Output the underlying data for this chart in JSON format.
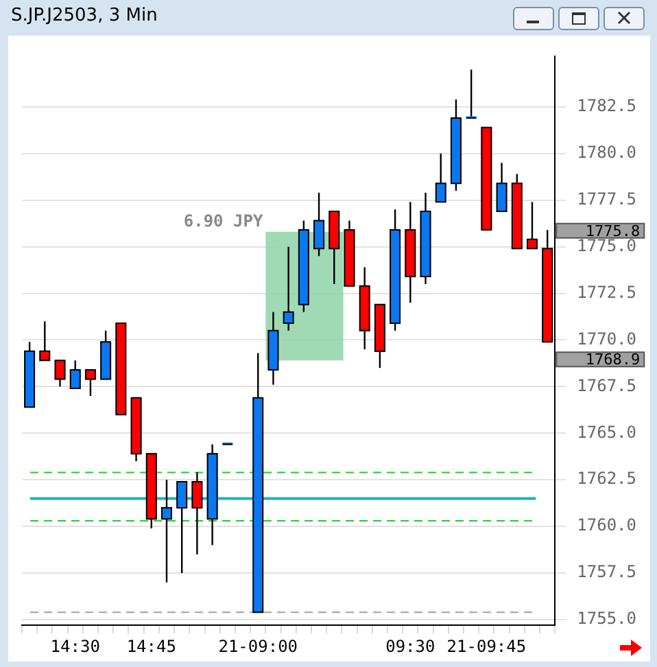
{
  "chart_data": {
    "type": "candlestick",
    "title": "S.JP.J2503, 3 Min",
    "categories": [
      null,
      null,
      null,
      "14:30",
      null,
      null,
      null,
      null,
      "14:45",
      null,
      null,
      null,
      null,
      null,
      null,
      "21-09:00",
      null,
      null,
      null,
      null,
      null,
      null,
      null,
      null,
      null,
      "09:30",
      null,
      null,
      null,
      null,
      "21-09:45",
      null,
      null,
      null,
      null
    ],
    "ohlc": [
      [
        1766.4,
        1769.9,
        1766.4,
        1769.4
      ],
      [
        1769.4,
        1771.0,
        1768.9,
        1768.9
      ],
      [
        1768.9,
        1768.9,
        1767.5,
        1767.9
      ],
      [
        1767.4,
        1768.9,
        1767.4,
        1768.4
      ],
      [
        1768.4,
        1768.4,
        1767.0,
        1767.9
      ],
      [
        1767.9,
        1770.5,
        1767.9,
        1769.9
      ],
      [
        1770.9,
        1770.9,
        1766.0,
        1766.0
      ],
      [
        1766.9,
        1766.9,
        1763.5,
        1763.9
      ],
      [
        1763.9,
        1763.9,
        1759.9,
        1760.4
      ],
      [
        1760.4,
        1762.5,
        1757.0,
        1761.0
      ],
      [
        1761.0,
        1762.4,
        1757.5,
        1762.4
      ],
      [
        1762.4,
        1762.9,
        1758.5,
        1761.0
      ],
      [
        1760.4,
        1764.4,
        1759.0,
        1763.9
      ],
      [
        1764.4,
        1764.4,
        1764.4,
        1764.4
      ],
      null,
      [
        1755.4,
        1769.3,
        1755.4,
        1766.9
      ],
      [
        1768.4,
        1771.5,
        1767.6,
        1770.5
      ],
      [
        1770.9,
        1775.0,
        1770.5,
        1771.5
      ],
      [
        1771.9,
        1776.4,
        1771.5,
        1775.9
      ],
      [
        1774.9,
        1777.9,
        1774.5,
        1776.4
      ],
      [
        1776.9,
        1776.9,
        1773.0,
        1774.9
      ],
      [
        1775.9,
        1776.4,
        1772.9,
        1772.9
      ],
      [
        1772.9,
        1773.9,
        1769.5,
        1770.5
      ],
      [
        1771.9,
        1771.9,
        1768.5,
        1769.4
      ],
      [
        1770.9,
        1777.0,
        1770.5,
        1775.9
      ],
      [
        1775.9,
        1777.4,
        1772.0,
        1773.4
      ],
      [
        1773.4,
        1777.9,
        1773.0,
        1776.9
      ],
      [
        1777.4,
        1780.0,
        1777.4,
        1778.4
      ],
      [
        1778.4,
        1782.9,
        1778.0,
        1781.9
      ],
      [
        1781.9,
        1784.5,
        1781.9,
        1781.9
      ],
      [
        1781.4,
        1781.4,
        1775.9,
        1775.9
      ],
      [
        1776.9,
        1779.5,
        1776.9,
        1778.4
      ],
      [
        1778.4,
        1778.9,
        1774.9,
        1774.9
      ],
      [
        1775.4,
        1777.4,
        1774.9,
        1774.9
      ],
      [
        1774.9,
        1775.9,
        1769.9,
        1769.9
      ]
    ],
    "ylim": [
      1754.7,
      1785.2
    ],
    "yticks": [
      {
        "value": 1755,
        "label": "1755.0"
      },
      {
        "value": 1757.5,
        "label": "1757.5"
      },
      {
        "value": 1760,
        "label": "1760.0"
      },
      {
        "value": 1762.5,
        "label": "1762.5"
      },
      {
        "value": 1765,
        "label": "1765.0"
      },
      {
        "value": 1767.5,
        "label": "1767.5"
      },
      {
        "value": 1770,
        "label": "1770.0"
      },
      {
        "value": 1772.5,
        "label": "1772.5"
      },
      {
        "value": 1775,
        "label": "1775.0"
      },
      {
        "value": 1777.5,
        "label": "1777.5"
      },
      {
        "value": 1780,
        "label": "1780.0"
      },
      {
        "value": 1782.5,
        "label": "1782.5"
      }
    ],
    "grid": true,
    "ref_lines": [
      {
        "axis": "y",
        "value": 1762.9,
        "color": "#22cc33",
        "line_style": "dashed"
      },
      {
        "axis": "y",
        "value": 1761.5,
        "color": "#10b8c0",
        "line_style": "solid"
      },
      {
        "axis": "y",
        "value": 1760.3,
        "color": "#22cc33",
        "line_style": "dashed"
      },
      {
        "axis": "y",
        "value": 1755.4,
        "color": "#a0a0a0",
        "line_style": "dashed"
      }
    ],
    "bands": [
      {
        "axis": "y",
        "from": 1768.9,
        "to": 1775.8,
        "color": "#8fd4a8",
        "label": "6.90 JPY"
      }
    ],
    "annotations": [
      "1775.8",
      "1768.9"
    ]
  }
}
